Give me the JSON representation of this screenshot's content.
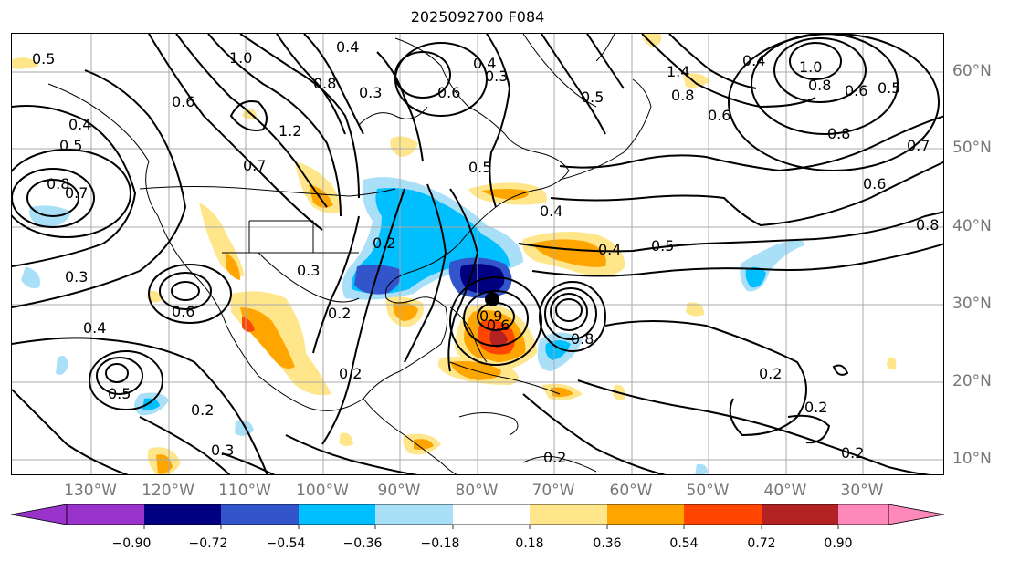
{
  "title": "2025092700 F084",
  "lon_labels": [
    "130°W",
    "120°W",
    "110°W",
    "100°W",
    "90°W",
    "80°W",
    "70°W",
    "60°W",
    "50°W",
    "40°W",
    "30°W"
  ],
  "lat_labels": [
    "60°N",
    "50°N",
    "40°N",
    "30°N",
    "20°N",
    "10°N"
  ],
  "contour_labels": [
    "0.5",
    "1.0",
    "0.4",
    "0.3",
    "0.6",
    "1.2",
    "0.8",
    "0.7",
    "0.5",
    "0.4",
    "0.3",
    "0.6",
    "0.4",
    "0.5",
    "0.3",
    "0.2",
    "0.8",
    "0.7",
    "0.6",
    "0.5",
    "0.4",
    "0.3",
    "0.2",
    "0.6",
    "0.8",
    "0.2",
    "0.2",
    "0.2",
    "0.3",
    "0.5",
    "0.4",
    "1.4",
    "0.8",
    "0.6",
    "0.4",
    "1.0",
    "0.8",
    "0.6",
    "0.5",
    "0.8",
    "0.7",
    "0.6",
    "0.5",
    "0.4",
    "0.2",
    "0.2",
    "0.2",
    "0.8",
    "0.9"
  ],
  "colorbar": {
    "ticks": [
      "−0.90",
      "−0.72",
      "−0.54",
      "−0.36",
      "−0.18",
      "0.18",
      "0.36",
      "0.54",
      "0.72",
      "0.90"
    ],
    "colors": [
      "#9933cc",
      "#000080",
      "#3355cc",
      "#00bfff",
      "#aadff8",
      "#ffffff",
      "#ffe68a",
      "#ffa500",
      "#ff4500",
      "#b22222",
      "#ff88bb"
    ]
  },
  "fill_colors": {
    "lightblue": "#aadff8",
    "blue": "#00bfff",
    "medblue": "#3355cc",
    "navy": "#000080",
    "yellow": "#ffe68a",
    "orange": "#ffa500",
    "red": "#ff4500",
    "darkred": "#b22222"
  }
}
